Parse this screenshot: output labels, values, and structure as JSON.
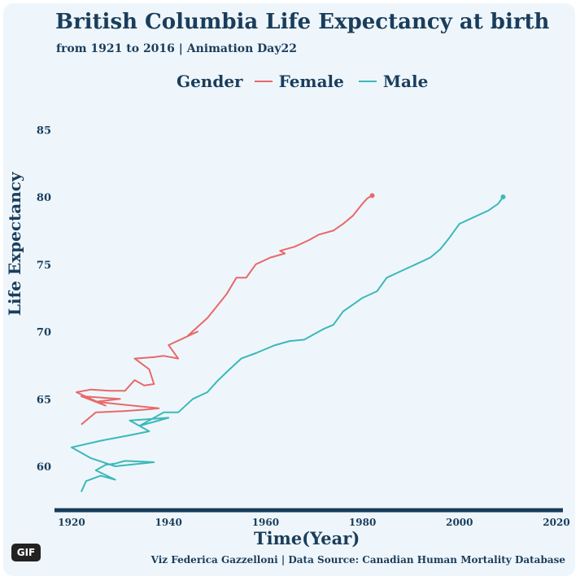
{
  "title": "British Columbia Life Expectancy at birth",
  "subtitle": "from 1921 to 2016 | Animation Day22",
  "legend_title": "Gender",
  "caption": "Viz Federica Gazzelloni | Data Source: Canadian Human Mortality Database",
  "badge": "GIF",
  "colors": {
    "Female": "#e8696a",
    "Male": "#3cb8b8",
    "text": "#1a3d5c",
    "axis": "#173b5a",
    "background": "#eef6fb"
  },
  "chart_data": {
    "type": "line",
    "xlabel": "Time(Year)",
    "ylabel": "Life Expectancy",
    "xlim": [
      1915,
      2020
    ],
    "ylim": [
      57,
      87
    ],
    "xticks": [
      1920,
      1940,
      1960,
      1980,
      2000,
      2020
    ],
    "yticks": [
      60,
      65,
      70,
      75,
      80,
      85
    ],
    "legend_position": "top",
    "grid": false,
    "series": [
      {
        "name": "Female",
        "points": [
          [
            1922,
            63.1
          ],
          [
            1925,
            64.0
          ],
          [
            1931,
            64.1
          ],
          [
            1935,
            64.2
          ],
          [
            1938,
            64.3
          ],
          [
            1930,
            64.6
          ],
          [
            1925,
            64.8
          ],
          [
            1930,
            65.0
          ],
          [
            1922,
            65.2
          ],
          [
            1927,
            64.5
          ],
          [
            1921,
            65.5
          ],
          [
            1924,
            65.7
          ],
          [
            1928,
            65.6
          ],
          [
            1931,
            65.6
          ],
          [
            1933,
            66.4
          ],
          [
            1935,
            66.0
          ],
          [
            1937,
            66.1
          ],
          [
            1936,
            67.2
          ],
          [
            1933,
            68.0
          ],
          [
            1937,
            68.1
          ],
          [
            1939,
            68.2
          ],
          [
            1942,
            68.0
          ],
          [
            1940,
            69.0
          ],
          [
            1943,
            69.5
          ],
          [
            1946,
            70.0
          ],
          [
            1944,
            69.7
          ],
          [
            1948,
            71.0
          ],
          [
            1950,
            71.9
          ],
          [
            1952,
            72.8
          ],
          [
            1954,
            74.0
          ],
          [
            1956,
            74.0
          ],
          [
            1958,
            75.0
          ],
          [
            1961,
            75.5
          ],
          [
            1964,
            75.8
          ],
          [
            1963,
            76.0
          ],
          [
            1966,
            76.3
          ],
          [
            1969,
            76.8
          ],
          [
            1971,
            77.2
          ],
          [
            1974,
            77.5
          ],
          [
            1976,
            78.0
          ],
          [
            1978,
            78.6
          ],
          [
            1980,
            79.5
          ],
          [
            1981,
            79.9
          ],
          [
            1982,
            80.1
          ]
        ]
      },
      {
        "name": "Male",
        "points": [
          [
            1922,
            58.1
          ],
          [
            1923,
            58.9
          ],
          [
            1926,
            59.3
          ],
          [
            1929,
            59.0
          ],
          [
            1925,
            59.7
          ],
          [
            1927,
            60.1
          ],
          [
            1929,
            60.2
          ],
          [
            1931,
            60.4
          ],
          [
            1937,
            60.3
          ],
          [
            1929,
            60.0
          ],
          [
            1924,
            60.6
          ],
          [
            1920,
            61.4
          ],
          [
            1926,
            61.9
          ],
          [
            1932,
            62.3
          ],
          [
            1936,
            62.6
          ],
          [
            1932,
            63.4
          ],
          [
            1940,
            63.6
          ],
          [
            1934,
            63.0
          ],
          [
            1939,
            64.0
          ],
          [
            1942,
            64.0
          ],
          [
            1945,
            65.0
          ],
          [
            1948,
            65.5
          ],
          [
            1950,
            66.3
          ],
          [
            1952,
            67.0
          ],
          [
            1955,
            68.0
          ],
          [
            1958,
            68.4
          ],
          [
            1960,
            68.7
          ],
          [
            1962,
            69.0
          ],
          [
            1965,
            69.3
          ],
          [
            1968,
            69.4
          ],
          [
            1970,
            69.8
          ],
          [
            1972,
            70.2
          ],
          [
            1974,
            70.5
          ],
          [
            1976,
            71.5
          ],
          [
            1978,
            72.0
          ],
          [
            1980,
            72.5
          ],
          [
            1983,
            73.0
          ],
          [
            1985,
            74.0
          ],
          [
            1988,
            74.5
          ],
          [
            1991,
            75.0
          ],
          [
            1994,
            75.5
          ],
          [
            1996,
            76.1
          ],
          [
            1998,
            77.0
          ],
          [
            2000,
            78.0
          ],
          [
            2003,
            78.5
          ],
          [
            2006,
            79.0
          ],
          [
            2008,
            79.5
          ],
          [
            2009,
            80.0
          ]
        ]
      }
    ]
  }
}
